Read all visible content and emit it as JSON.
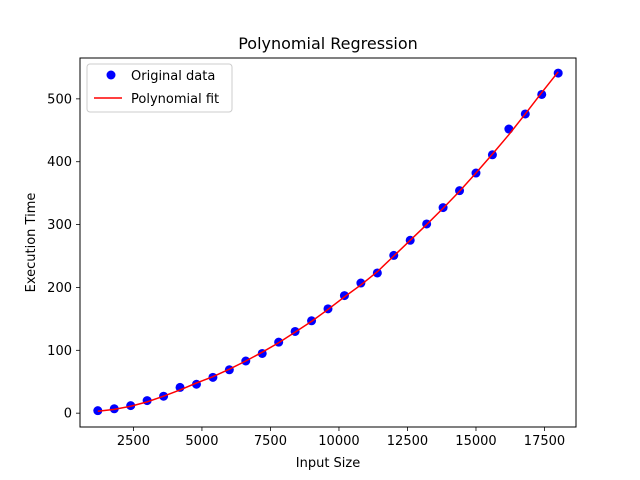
{
  "chart_data": {
    "type": "scatter",
    "title": "Polynomial Regression",
    "xlabel": "Input Size",
    "ylabel": "Execution Time",
    "xlim": [
      550,
      18650
    ],
    "ylim": [
      -22,
      565
    ],
    "xticks": [
      2500,
      5000,
      7500,
      10000,
      12500,
      15000,
      17500
    ],
    "xtick_labels": [
      "2500",
      "5000",
      "7500",
      "10000",
      "12500",
      "15000",
      "17500"
    ],
    "yticks": [
      0,
      100,
      200,
      300,
      400,
      500
    ],
    "ytick_labels": [
      "0",
      "100",
      "200",
      "300",
      "400",
      "500"
    ],
    "grid": false,
    "legend_position": "upper-left",
    "series": [
      {
        "name": "Original data",
        "kind": "scatter",
        "color": "#0000ff",
        "x": [
          1200,
          1800,
          2400,
          3000,
          3600,
          4200,
          4800,
          5400,
          6000,
          6600,
          7200,
          7800,
          8400,
          9000,
          9600,
          10200,
          10800,
          11400,
          12000,
          12600,
          13200,
          13800,
          14400,
          15000,
          15600,
          16200,
          16800,
          17400,
          18000
        ],
        "y": [
          4,
          7,
          12,
          20,
          27,
          41,
          46,
          57,
          69,
          83,
          95,
          113,
          130,
          147,
          166,
          187,
          207,
          223,
          251,
          275,
          301,
          327,
          354,
          382,
          411,
          452,
          476,
          507,
          541
        ]
      },
      {
        "name": "Polynomial fit",
        "kind": "line",
        "color": "#ff0000",
        "x": [
          1200,
          1800,
          2400,
          3000,
          3600,
          4200,
          4800,
          5400,
          6000,
          6600,
          7200,
          7800,
          8400,
          9000,
          9600,
          10200,
          10800,
          11400,
          12000,
          12600,
          13200,
          13800,
          14400,
          15000,
          15600,
          16200,
          16800,
          17400,
          18000
        ],
        "y": [
          3,
          6,
          11,
          18,
          27,
          37,
          48,
          58,
          70,
          83,
          97,
          112,
          129,
          146,
          165,
          185,
          204,
          225,
          250,
          275,
          300,
          326,
          353,
          382,
          412,
          443,
          476,
          510,
          543
        ]
      }
    ]
  }
}
